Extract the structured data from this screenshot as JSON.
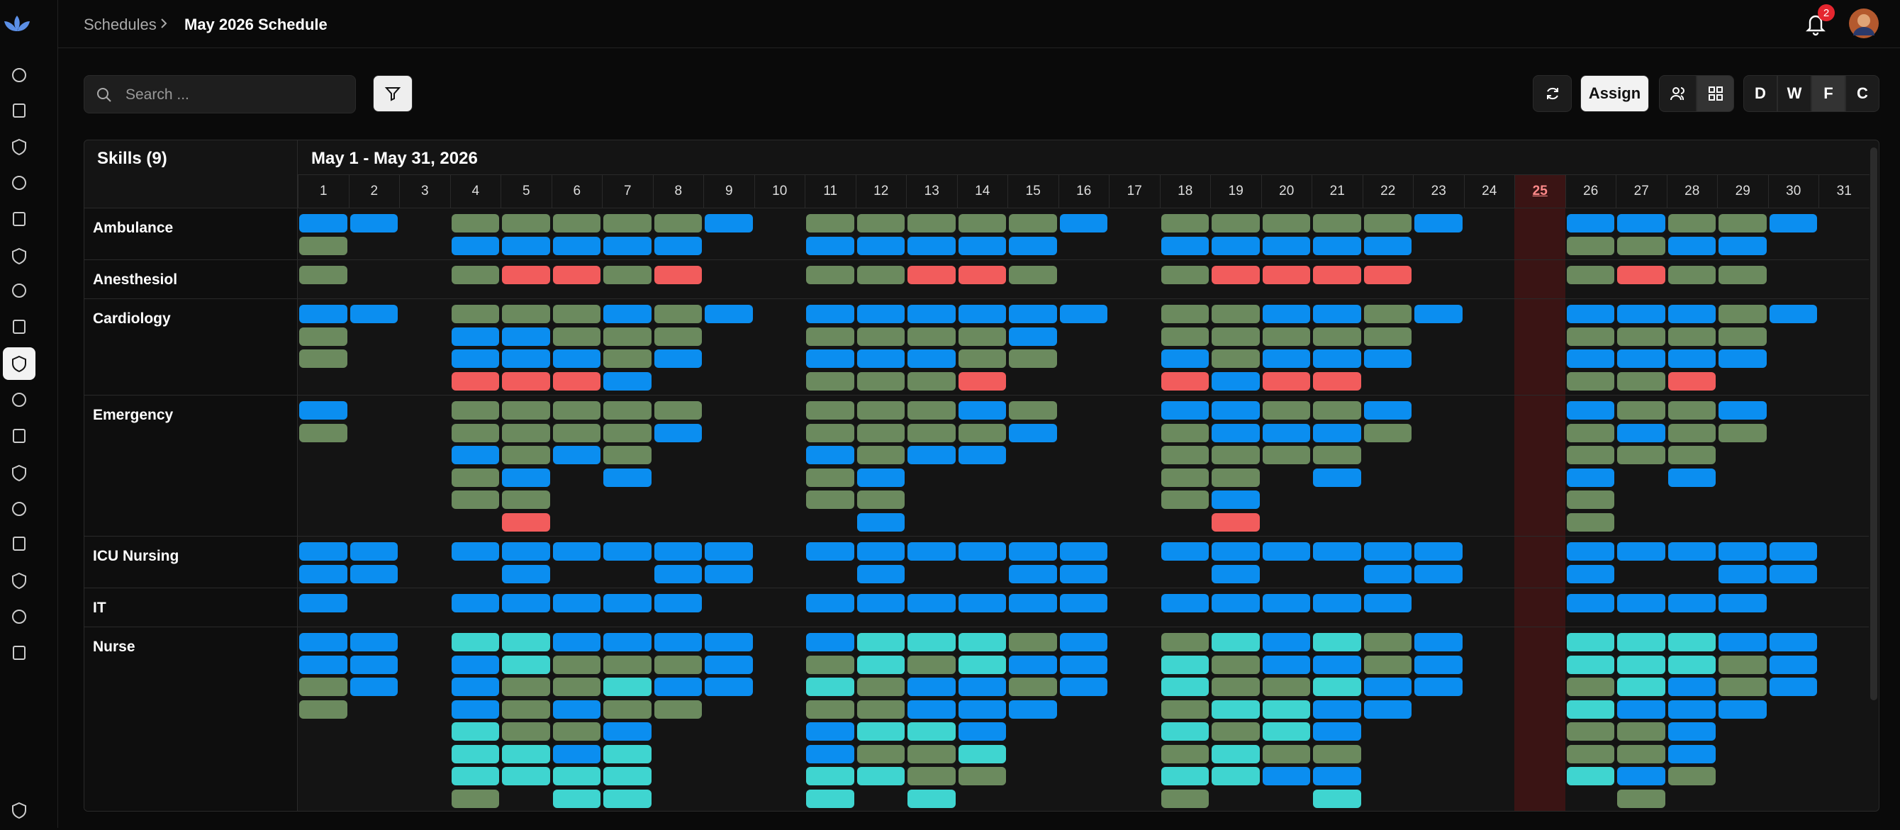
{
  "breadcrumb": {
    "parent": "Schedules",
    "current": "May 2026 Schedule"
  },
  "notifications": {
    "count": "2"
  },
  "toolbar": {
    "search_placeholder": "Search ...",
    "assign": "Assign",
    "views": [
      "D",
      "W",
      "F",
      "C"
    ]
  },
  "schedule": {
    "skills_header": "Skills (9)",
    "range": "May 1 - May 31, 2026",
    "days": [
      "1",
      "2",
      "3",
      "4",
      "5",
      "6",
      "7",
      "8",
      "9",
      "10",
      "11",
      "12",
      "13",
      "14",
      "15",
      "16",
      "17",
      "18",
      "19",
      "20",
      "21",
      "22",
      "23",
      "24",
      "25",
      "26",
      "27",
      "28",
      "29",
      "30",
      "31"
    ],
    "today_index": 24,
    "shift_colors": {
      "b": "#0b8ef0",
      "g": "#6b8a5e",
      "r": "#f25c5c",
      "c": "#3fd5d0"
    },
    "rows": [
      {
        "skill": "Ambulance",
        "shifts": [
          "bg",
          "b",
          "",
          "gb",
          "gb",
          "gb",
          "gb",
          "gb",
          "b",
          "",
          "gb",
          "gb",
          "gb",
          "gb",
          "gb",
          "b",
          "",
          "gb",
          "gb",
          "gb",
          "gb",
          "gb",
          "b",
          "",
          "",
          "bg",
          "bg",
          "gb",
          "gb",
          "b",
          ""
        ]
      },
      {
        "skill": "Anesthesiol",
        "shifts": [
          "g",
          "",
          "",
          "g",
          "r",
          "r",
          "g",
          "r",
          "",
          "",
          "g",
          "g",
          "r",
          "r",
          "g",
          "",
          "",
          "g",
          "r",
          "r",
          "r",
          "r",
          "",
          "",
          "",
          "g",
          "r",
          "g",
          "g",
          "",
          ""
        ]
      },
      {
        "skill": "Cardiology",
        "shifts": [
          "bgg",
          "b",
          "",
          "gbbr",
          "gbbr",
          "ggbr",
          "bggb",
          "ggb",
          "b",
          "",
          "bgbg",
          "bgbg",
          "bgbg",
          "bggr",
          "bbg",
          "b",
          "",
          "ggbr",
          "gggb",
          "bgbr",
          "bgbr",
          "ggb",
          "b",
          "",
          "",
          "bgbg",
          "bgbg",
          "bgbr",
          "ggb",
          "b",
          ""
        ]
      },
      {
        "skill": "Emergency",
        "shifts": [
          "bg",
          "",
          "",
          "ggbgg",
          "gggbgr",
          "ggb",
          "gggb",
          "gb",
          "",
          "",
          "ggbgg",
          "gggbgb",
          "ggb",
          "bgb",
          "gb",
          "",
          "",
          "bgggg",
          "bbggbr",
          "gbg",
          "gbgb",
          "bg",
          "",
          "",
          "",
          "bggbgg",
          "gbg",
          "gggb",
          "bg",
          "",
          ""
        ]
      },
      {
        "skill": "ICU Nursing",
        "shifts": [
          "bb",
          "bb",
          "",
          "b",
          "bb",
          "b",
          "b",
          "bb",
          "bb",
          "",
          "b",
          "bb",
          "b",
          "b",
          "bb",
          "bb",
          "",
          "b",
          "bb",
          "b",
          "b",
          "bb",
          "bb",
          "",
          "",
          "bb",
          "b",
          "b",
          "bb",
          "bb",
          ""
        ]
      },
      {
        "skill": "IT",
        "shifts": [
          "b",
          "",
          "",
          "b",
          "b",
          "b",
          "b",
          "b",
          "",
          "",
          "b",
          "b",
          "b",
          "b",
          "b",
          "b",
          "",
          "b",
          "b",
          "b",
          "b",
          "b",
          "",
          "",
          "",
          "b",
          "b",
          "b",
          "b",
          "",
          ""
        ]
      },
      {
        "skill": "Nurse",
        "shifts": [
          "bbgg",
          "bbb",
          "",
          "cbbbcccg",
          "ccgggcc",
          "bggbgbcc",
          "bgcgbccc",
          "bgbg",
          "bbb",
          "",
          "bgcgbbcc",
          "ccggcgc",
          "cgbbcggc",
          "ccbbbcg",
          "gbgb",
          "bbb",
          "",
          "gccgcgcg",
          "cggcgcc",
          "bbgccgb",
          "cbcbbgbc",
          "ggbb",
          "bbb",
          "",
          "",
          "ccgcggc",
          "cccbggbg",
          "ccbbbbg",
          "bggb",
          "bbb",
          ""
        ]
      }
    ]
  }
}
